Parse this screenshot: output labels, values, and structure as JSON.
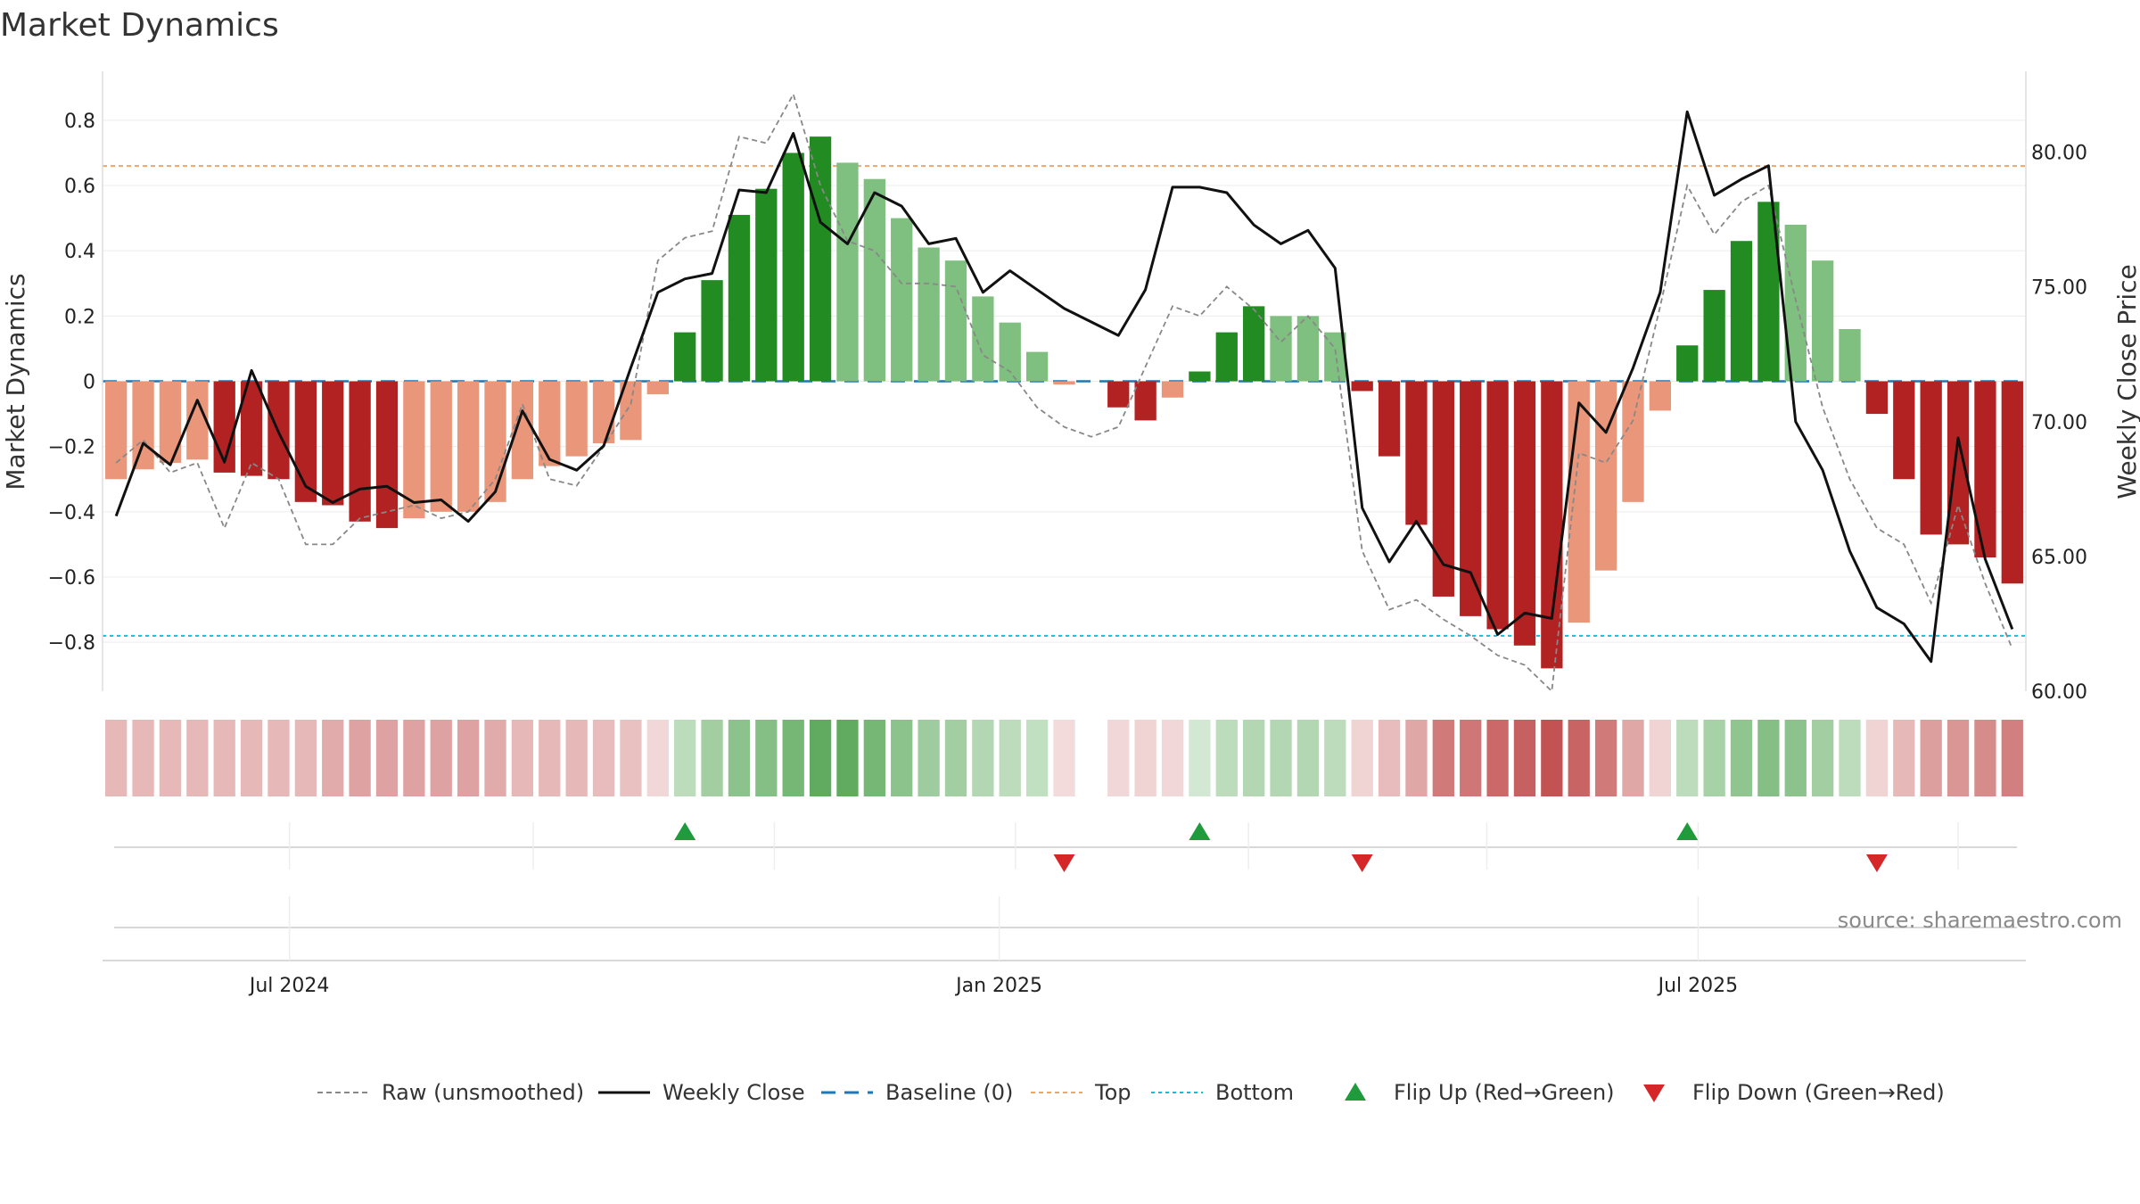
{
  "title": "Market Dynamics",
  "source_note": "source: sharemaestro.com",
  "chart_data": {
    "type": "bar",
    "ylabel": "Market Dynamics",
    "ylabel_right": "Weekly Close Price",
    "ylim": [
      -0.95,
      0.95
    ],
    "ylim_right": [
      60,
      83
    ],
    "y_ticks": [
      0.8,
      0.6,
      0.4,
      0.2,
      0,
      -0.2,
      -0.4,
      -0.6,
      -0.8
    ],
    "y_tick_labels": [
      "0.8",
      "0.6",
      "0.4",
      "0.2",
      "0",
      "−0.2",
      "−0.4",
      "−0.6",
      "−0.8"
    ],
    "y_right_ticks": [
      80,
      75,
      70,
      65,
      60
    ],
    "y_right_tick_labels": [
      "80.00",
      "75.00",
      "70.00",
      "65.00",
      "60.00"
    ],
    "x_ticks": [
      {
        "label": "Jul 2024",
        "index": 6.4
      },
      {
        "label": "Jan 2025",
        "index": 32.6
      },
      {
        "label": "Jul 2025",
        "index": 58.4
      }
    ],
    "grid": true,
    "legend_position": "bottom",
    "top_level": 0.66,
    "bottom_level": -0.78,
    "values": [
      -0.3,
      -0.27,
      -0.25,
      -0.24,
      -0.28,
      -0.29,
      -0.3,
      -0.37,
      -0.38,
      -0.43,
      -0.45,
      -0.42,
      -0.4,
      -0.4,
      -0.37,
      -0.3,
      -0.26,
      -0.23,
      -0.19,
      -0.18,
      -0.04,
      0.15,
      0.31,
      0.51,
      0.59,
      0.7,
      0.75,
      0.67,
      0.62,
      0.5,
      0.41,
      0.37,
      0.26,
      0.18,
      0.09,
      -0.01,
      null,
      -0.08,
      -0.12,
      -0.05,
      0.03,
      0.15,
      0.23,
      0.2,
      0.2,
      0.15,
      -0.03,
      -0.23,
      -0.44,
      -0.66,
      -0.72,
      -0.76,
      -0.81,
      -0.88,
      -0.74,
      -0.58,
      -0.37,
      -0.09,
      0.11,
      0.28,
      0.43,
      0.55,
      0.48,
      0.37,
      0.16,
      -0.1,
      -0.3,
      -0.47,
      -0.5,
      -0.54,
      -0.62
    ],
    "raw_values": [
      -0.25,
      -0.18,
      -0.28,
      -0.25,
      -0.45,
      -0.25,
      -0.3,
      -0.5,
      -0.5,
      -0.42,
      -0.4,
      -0.38,
      -0.42,
      -0.4,
      -0.3,
      -0.07,
      -0.3,
      -0.32,
      -0.2,
      -0.07,
      0.37,
      0.44,
      0.46,
      0.75,
      0.73,
      0.88,
      0.6,
      0.43,
      0.4,
      0.3,
      0.3,
      0.29,
      0.08,
      0.03,
      -0.08,
      -0.14,
      -0.17,
      -0.14,
      null,
      0.23,
      0.2,
      0.29,
      0.22,
      0.12,
      0.2,
      0.1,
      -0.52,
      -0.7,
      -0.67,
      -0.73,
      -0.78,
      -0.84,
      -0.87,
      -0.95,
      -0.22,
      -0.25,
      -0.12,
      0.23,
      0.6,
      0.45,
      0.55,
      0.6,
      0.25,
      -0.08,
      -0.3,
      -0.45,
      -0.5,
      -0.68,
      -0.38,
      -0.62,
      -0.82
    ],
    "weekly_close": [
      null,
      69.2,
      68.4,
      70.8,
      68.5,
      71.9,
      69.6,
      67.6,
      67.0,
      67.5,
      67.6,
      67.0,
      67.1,
      66.3,
      67.4,
      70.4,
      68.6,
      68.2,
      69.1,
      72.0,
      74.8,
      75.3,
      75.5,
      78.6,
      78.5,
      80.7,
      77.4,
      76.6,
      78.5,
      78.0,
      76.6,
      76.8,
      74.8,
      75.6,
      74.9,
      74.2,
      73.7,
      73.2,
      74.9,
      78.7,
      78.7,
      78.5,
      77.3,
      76.6,
      77.1,
      75.7,
      66.8,
      64.8,
      66.3,
      64.7,
      64.4,
      62.1,
      62.9,
      62.7,
      70.7,
      69.6,
      72.0,
      74.8,
      81.5,
      78.4,
      79.0,
      79.5,
      70.0,
      68.2,
      65.2,
      63.1,
      62.5,
      61.1,
      69.4,
      64.9,
      62.3
    ],
    "weekly_close_start": 66.5,
    "strength_strip": [
      0.32,
      0.32,
      0.32,
      0.32,
      0.32,
      0.32,
      0.32,
      0.32,
      0.38,
      0.42,
      0.42,
      0.42,
      0.42,
      0.42,
      0.38,
      0.32,
      0.32,
      0.32,
      0.3,
      0.28,
      0.18,
      0.3,
      0.42,
      0.52,
      0.55,
      0.62,
      0.72,
      0.72,
      0.62,
      0.52,
      0.44,
      0.42,
      0.35,
      0.3,
      0.28,
      0.16,
      null,
      0.18,
      0.2,
      0.18,
      0.2,
      0.3,
      0.35,
      0.35,
      0.35,
      0.3,
      0.2,
      0.3,
      0.4,
      0.6,
      0.62,
      0.68,
      0.72,
      0.78,
      0.7,
      0.6,
      0.4,
      0.2,
      0.3,
      0.4,
      0.5,
      0.55,
      0.52,
      0.42,
      0.3,
      0.2,
      0.32,
      0.44,
      0.48,
      0.52,
      0.58
    ],
    "flip_up_indices": [
      21,
      40,
      58
    ],
    "flip_down_indices": [
      35,
      46,
      65
    ],
    "colors": {
      "strong_red": "#b22222",
      "weak_red": "#e9967a",
      "strong_green": "#228b22",
      "weak_green": "#7fbf7f",
      "raw_line": "#888888",
      "close_line": "#111111",
      "baseline": "#1f77b4",
      "top": "#e8a870",
      "bottom": "#17becf",
      "flip_up": "#1f9a3c",
      "flip_down": "#d62728"
    },
    "legend": [
      {
        "label": "Raw (unsmoothed)",
        "kind": "dash-grey"
      },
      {
        "label": "Weekly Close",
        "kind": "solid-black"
      },
      {
        "label": "Baseline (0)",
        "kind": "dash-blue"
      },
      {
        "label": "Top",
        "kind": "dot-orange"
      },
      {
        "label": "Bottom",
        "kind": "dot-cyan"
      },
      {
        "label": "Flip Up (Red→Green)",
        "kind": "tri-up"
      },
      {
        "label": "Flip Down (Green→Red)",
        "kind": "tri-down"
      }
    ]
  }
}
